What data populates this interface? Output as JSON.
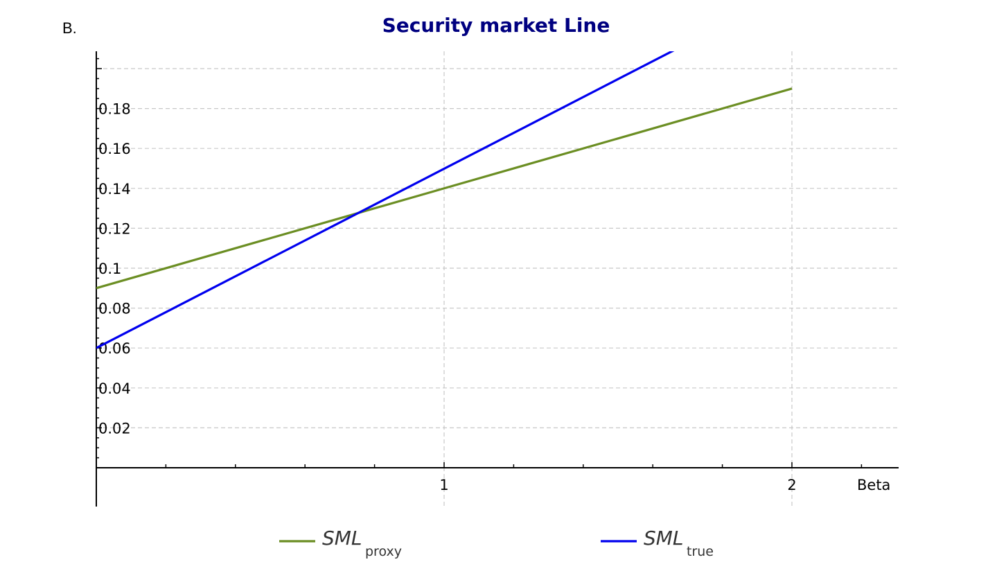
{
  "panel_label": "B.",
  "chart_data": {
    "type": "line",
    "title": "Security market Line",
    "xlabel": "Beta",
    "ylabel": "",
    "xlim": [
      0,
      2.3
    ],
    "ylim": [
      0,
      0.2
    ],
    "grid": true,
    "legend_position": "bottom",
    "x_ticks": [
      1,
      2
    ],
    "x_tick_labels": [
      "1",
      "2"
    ],
    "y_ticks": [
      0.02,
      0.04,
      0.06,
      0.08,
      0.1,
      0.12,
      0.14,
      0.16,
      0.18
    ],
    "y_tick_labels": [
      "0.02",
      "0.04",
      "0.06",
      "0.08",
      "0.1",
      "0.12",
      "0.14",
      "0.16",
      "0.18"
    ],
    "series": [
      {
        "name": "SML",
        "subscript": "proxy",
        "color": "#6b8e23",
        "x": [
          0,
          2
        ],
        "y": [
          0.09,
          0.19
        ]
      },
      {
        "name": "SML",
        "subscript": "true",
        "color": "#0000ee",
        "x": [
          0,
          1.67
        ],
        "y": [
          0.06,
          0.21
        ]
      }
    ]
  }
}
